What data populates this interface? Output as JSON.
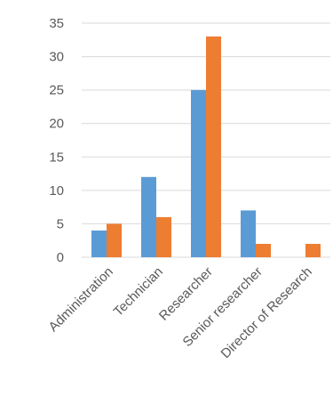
{
  "chart_data": {
    "type": "bar",
    "categories": [
      "Administration",
      "Technician",
      "Researcher",
      "Senior researcher",
      "Director of Research"
    ],
    "series": [
      {
        "values": [
          4,
          12,
          25,
          7,
          0
        ],
        "color": "#5b9bd5"
      },
      {
        "values": [
          5,
          6,
          33,
          2,
          2
        ],
        "color": "#ed7d31"
      }
    ],
    "ylim": [
      0,
      35
    ],
    "yticks": [
      0,
      5,
      10,
      15,
      20,
      25,
      30,
      35
    ],
    "grid": true,
    "legend": "none"
  }
}
